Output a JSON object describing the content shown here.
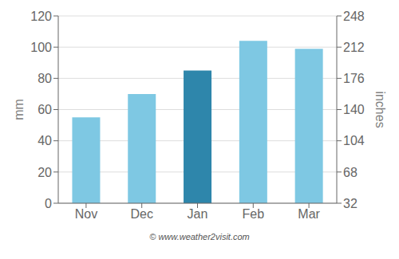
{
  "chart_data": {
    "type": "bar",
    "categories": [
      "Nov",
      "Dec",
      "Jan",
      "Feb",
      "Mar"
    ],
    "values": [
      55,
      70,
      85,
      104,
      99
    ],
    "colors": [
      "#7EC8E3",
      "#7EC8E3",
      "#2E86AB",
      "#7EC8E3",
      "#7EC8E3"
    ],
    "ylabel": "mm",
    "y2label": "inches",
    "ylim": [
      0,
      120
    ],
    "yticks": [
      0,
      20,
      40,
      60,
      80,
      100,
      120
    ],
    "y2lim": [
      32,
      248
    ],
    "y2ticks": [
      32,
      68,
      104,
      140,
      176,
      212,
      248
    ],
    "grid": true,
    "annotations": [
      "© www.weather2visit.com"
    ]
  }
}
